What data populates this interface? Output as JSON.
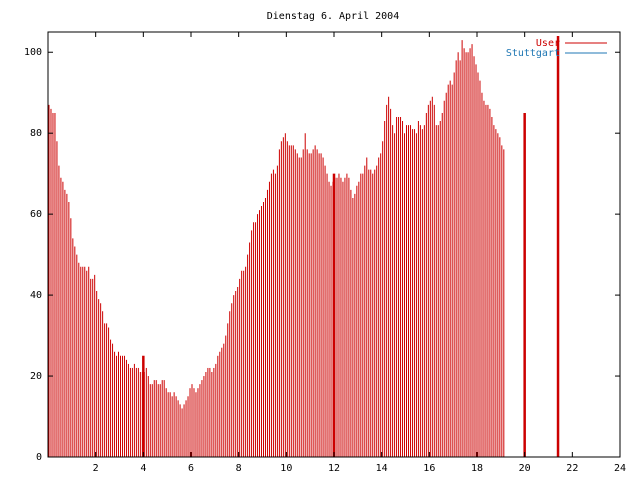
{
  "chart_data": {
    "type": "bar",
    "title": "Dienstag 6. April 2004",
    "xlabel": "",
    "ylabel": "",
    "xlim": [
      0,
      24
    ],
    "ylim": [
      0,
      105
    ],
    "xticks": [
      2,
      4,
      6,
      8,
      10,
      12,
      14,
      16,
      18,
      20,
      22,
      24
    ],
    "yticks": [
      0,
      20,
      40,
      60,
      80,
      100
    ],
    "grid": false,
    "legend_position": "top-right",
    "colors": {
      "bars": "#cc0000",
      "stuttgart": "#1f77b4",
      "axis": "#000000"
    },
    "series": [
      {
        "name": "User",
        "interval_minutes": 5,
        "values": [
          87,
          86,
          85,
          85,
          78,
          72,
          69,
          68,
          66,
          65,
          63,
          59,
          54,
          52,
          50,
          48,
          47,
          47,
          47,
          46,
          47,
          44,
          44,
          45,
          41,
          39,
          38,
          36,
          33,
          33,
          32,
          29,
          28,
          26,
          25,
          26,
          25,
          25,
          25,
          24,
          23,
          22,
          22,
          23,
          22,
          22,
          21,
          21,
          21,
          22,
          20,
          18,
          18,
          19,
          19,
          18,
          18,
          19,
          19,
          17,
          16,
          16,
          15,
          16,
          15,
          14,
          13,
          12,
          13,
          14,
          15,
          17,
          18,
          17,
          16,
          17,
          18,
          19,
          20,
          21,
          22,
          22,
          21,
          22,
          23,
          25,
          26,
          27,
          28,
          30,
          33,
          36,
          38,
          40,
          41,
          42,
          44,
          46,
          46,
          47,
          50,
          53,
          56,
          58,
          58,
          60,
          61,
          62,
          63,
          64,
          66,
          68,
          70,
          71,
          70,
          72,
          76,
          78,
          79,
          80,
          78,
          77,
          77,
          77,
          76,
          75,
          74,
          74,
          76,
          80,
          76,
          75,
          75,
          76,
          77,
          76,
          75,
          75,
          74,
          72,
          70,
          68,
          67,
          68,
          69,
          69,
          70,
          69,
          68,
          69,
          70,
          69,
          66,
          64,
          65,
          67,
          68,
          70,
          70,
          72,
          74,
          71,
          71,
          70,
          71,
          72,
          74,
          75,
          78,
          83,
          87,
          89,
          86,
          82,
          80,
          84,
          84,
          84,
          83,
          80,
          82,
          82,
          82,
          81,
          81,
          80,
          83,
          82,
          81,
          82,
          85,
          87,
          88,
          89,
          87,
          82,
          82,
          83,
          85,
          88,
          90,
          92,
          93,
          92,
          95,
          98,
          100,
          98,
          103,
          101,
          100,
          100,
          101,
          102,
          99,
          97,
          95,
          93,
          90,
          88,
          87,
          87,
          86,
          84,
          82,
          81,
          80,
          79,
          77,
          76
        ]
      },
      {
        "name": "Stuttgart",
        "values": []
      }
    ],
    "highlights": [
      {
        "x": 4.0,
        "value": 25
      },
      {
        "x": 12.0,
        "value": 70
      },
      {
        "x": 20.0,
        "value": 85
      },
      {
        "x": 21.4,
        "value": 104
      }
    ]
  }
}
